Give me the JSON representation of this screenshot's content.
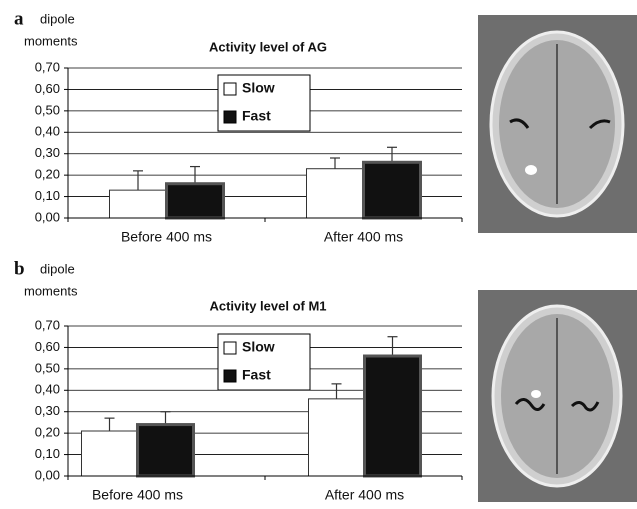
{
  "chart_data": [
    {
      "type": "bar",
      "panel": "a",
      "ylabel": [
        "dipole",
        "moments"
      ],
      "title": "Activity level of AG",
      "categories": [
        "Before 400 ms",
        "After 400 ms"
      ],
      "series": [
        {
          "name": "Slow",
          "color": "#ffffff",
          "values": [
            0.13,
            0.23
          ],
          "errors": [
            0.09,
            0.05
          ]
        },
        {
          "name": "Fast",
          "color": "#111111",
          "values": [
            0.16,
            0.26
          ],
          "errors": [
            0.08,
            0.07
          ]
        }
      ],
      "ylim": [
        0,
        0.7
      ],
      "yticks": [
        {
          "value": 0,
          "label": "0,00"
        },
        {
          "value": 0.1,
          "label": "0,10"
        },
        {
          "value": 0.2,
          "label": "0,20"
        },
        {
          "value": 0.3,
          "label": "0,30"
        },
        {
          "value": 0.4,
          "label": "0,40"
        },
        {
          "value": 0.5,
          "label": "0,50"
        },
        {
          "value": 0.6,
          "label": "0,60"
        },
        {
          "value": 0.7,
          "label": "0,70"
        }
      ],
      "grid": true
    },
    {
      "type": "bar",
      "panel": "b",
      "ylabel": [
        "dipole",
        "moments"
      ],
      "title": "Activity level of M1",
      "categories": [
        "Before 400 ms",
        "After 400 ms"
      ],
      "series": [
        {
          "name": "Slow",
          "color": "#ffffff",
          "values": [
            0.21,
            0.36
          ],
          "errors": [
            0.06,
            0.07
          ]
        },
        {
          "name": "Fast",
          "color": "#111111",
          "values": [
            0.24,
            0.56
          ],
          "errors": [
            0.06,
            0.09
          ]
        }
      ],
      "ylim": [
        0,
        0.7
      ],
      "yticks": [
        {
          "value": 0,
          "label": "0,00"
        },
        {
          "value": 0.1,
          "label": "0,10"
        },
        {
          "value": 0.2,
          "label": "0,20"
        },
        {
          "value": 0.3,
          "label": "0,30"
        },
        {
          "value": 0.4,
          "label": "0,40"
        },
        {
          "value": 0.5,
          "label": "0,50"
        },
        {
          "value": 0.6,
          "label": "0,60"
        },
        {
          "value": 0.7,
          "label": "0,70"
        }
      ],
      "grid": true
    }
  ]
}
